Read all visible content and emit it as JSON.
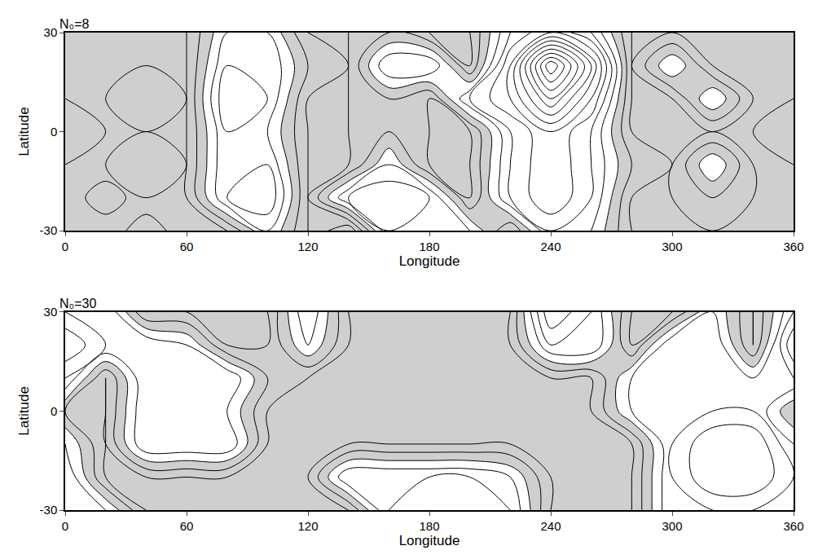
{
  "chart_data": [
    {
      "type": "contour",
      "title": "N₀=8",
      "x_label": "Longitude",
      "y_label": "Latitude",
      "x": [
        0,
        20,
        40,
        60,
        80,
        100,
        120,
        140,
        160,
        180,
        200,
        220,
        240,
        260,
        280,
        300,
        320,
        340,
        360
      ],
      "y": [
        -30,
        -20,
        -10,
        0,
        10,
        20,
        30
      ],
      "z": [
        [
          -1,
          -1,
          -2,
          -1,
          -1,
          0.5,
          -1,
          -2,
          1,
          1,
          0.5,
          -1,
          1,
          0.5,
          -1,
          -1,
          -1,
          -1,
          -1
        ],
        [
          -1,
          -2,
          -1,
          -1,
          1,
          1.5,
          -1,
          1,
          1.5,
          1,
          -1,
          1,
          2,
          1,
          -1,
          -1,
          -0.5,
          -1,
          -1
        ],
        [
          -1,
          -1,
          -0.5,
          -1,
          1,
          1,
          -1,
          -1,
          0.5,
          -1,
          -1,
          1,
          2,
          1,
          -0.5,
          -1,
          0.5,
          -1,
          -1
        ],
        [
          -0.5,
          -1,
          -1,
          -1,
          1,
          0.5,
          -1,
          -1,
          -0.5,
          -1,
          -1,
          1,
          2,
          1,
          -1,
          -1,
          -1,
          -1,
          -0.5
        ],
        [
          -1,
          -1,
          -0.5,
          -1,
          1.5,
          1,
          -1,
          -1,
          -0.5,
          -1,
          1,
          2,
          4,
          2,
          -1,
          -1,
          0.5,
          -1,
          -1
        ],
        [
          -1,
          -1,
          -1,
          -1,
          1,
          1,
          -0.5,
          -1,
          1,
          1,
          -1,
          2,
          6,
          3,
          -1,
          0.5,
          -1,
          -1,
          -1
        ],
        [
          -1,
          -1,
          -1,
          -1,
          0.5,
          0.5,
          -1,
          -1,
          -0.5,
          -1,
          -1,
          1,
          2,
          1,
          -1,
          -1,
          -1,
          -1,
          -1
        ]
      ],
      "xlim": [
        0,
        360
      ],
      "xticks": [
        0,
        60,
        120,
        180,
        240,
        300,
        360
      ],
      "ylim": [
        -30,
        30
      ],
      "yticks": [
        -30,
        0,
        30
      ]
    },
    {
      "type": "contour",
      "title": "N₀=30",
      "x_label": "Longitude",
      "y_label": "Latitude",
      "x": [
        0,
        20,
        40,
        60,
        80,
        100,
        120,
        140,
        160,
        180,
        200,
        220,
        240,
        260,
        280,
        300,
        320,
        340,
        360
      ],
      "y": [
        -30,
        -20,
        -10,
        0,
        10,
        20,
        30
      ],
      "z": [
        [
          1,
          0.5,
          -1,
          -1,
          -1,
          -1,
          -1,
          -1,
          1,
          1.5,
          1.5,
          1,
          -1,
          -1,
          -1,
          1,
          1,
          1,
          1
        ],
        [
          1,
          -1,
          -1,
          -1,
          -1,
          -1,
          -1,
          1,
          1,
          1,
          1,
          0.5,
          -1,
          -1,
          -1,
          1,
          2,
          2,
          1
        ],
        [
          0.5,
          -1,
          1,
          1,
          1,
          -1,
          -1,
          -1,
          -1,
          -1,
          -1,
          -1,
          -1,
          -1,
          -1,
          1,
          2,
          2,
          0.5
        ],
        [
          -0.5,
          -1,
          1,
          1,
          0.5,
          -1,
          -1,
          -1,
          -1,
          -1,
          -1,
          -1,
          -1,
          -1,
          0.5,
          1,
          1,
          1,
          -0.5
        ],
        [
          1,
          -1,
          1,
          1,
          1,
          -0.5,
          -1,
          -1,
          -1,
          -1,
          -1,
          -1,
          -1,
          -1,
          0.5,
          1,
          1,
          0.5,
          1
        ],
        [
          2,
          1,
          1,
          0.5,
          -1,
          -1,
          0.5,
          -1,
          -1,
          -1,
          -1,
          -1,
          1,
          1,
          -1,
          1,
          1,
          -1,
          2
        ],
        [
          1,
          1,
          -1,
          -1,
          -1,
          -1,
          1,
          -1,
          -1,
          -1,
          -1,
          -1,
          2,
          1,
          -1,
          -1,
          0.5,
          -1,
          1
        ]
      ],
      "xlim": [
        0,
        360
      ],
      "xticks": [
        0,
        60,
        120,
        180,
        240,
        300,
        360
      ],
      "ylim": [
        -30,
        30
      ],
      "yticks": [
        -30,
        0,
        30
      ]
    }
  ]
}
